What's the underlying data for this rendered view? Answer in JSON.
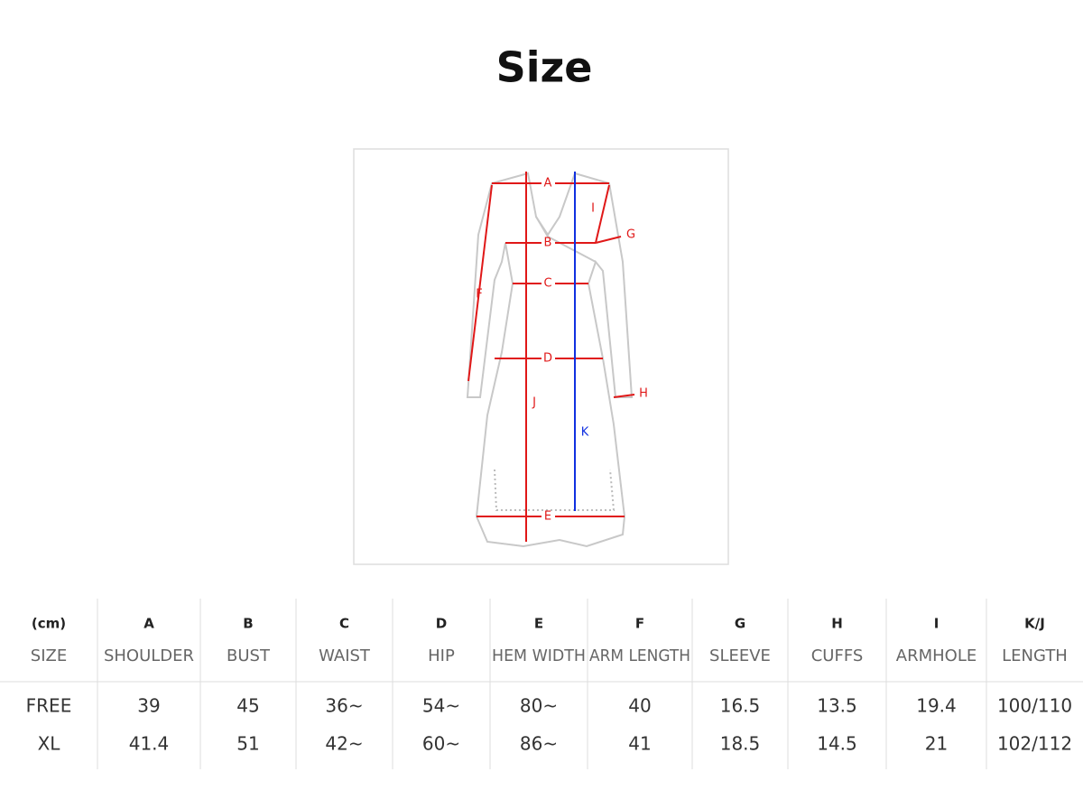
{
  "title": "Size",
  "diagram": {
    "labels": [
      "A",
      "B",
      "C",
      "D",
      "E",
      "F",
      "G",
      "H",
      "I",
      "J",
      "K"
    ]
  },
  "table": {
    "header": [
      [
        "(cm)",
        "A",
        "B",
        "C",
        "D",
        "E",
        "F",
        "G",
        "H",
        "I",
        "K/J"
      ],
      [
        "SIZE",
        "SHOULDER",
        "BUST",
        "WAIST",
        "HIP",
        "HEM WIDTH",
        "ARM LENGTH",
        "SLEEVE",
        "CUFFS",
        "ARMHOLE",
        "LENGTH"
      ]
    ],
    "rows": [
      [
        "FREE",
        "39",
        "45",
        "36~",
        "54~",
        "80~",
        "40",
        "16.5",
        "13.5",
        "19.4",
        "100/110"
      ],
      [
        "XL",
        "41.4",
        "51",
        "42~",
        "60~",
        "86~",
        "41",
        "18.5",
        "14.5",
        "21",
        "102/112"
      ]
    ]
  }
}
